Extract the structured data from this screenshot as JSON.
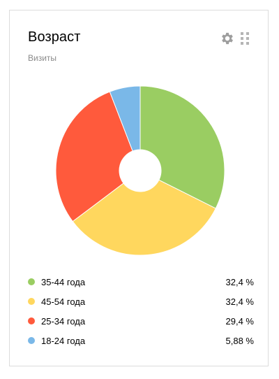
{
  "widget": {
    "title": "Возраст",
    "subtitle": "Визиты",
    "icons": [
      "gear-icon",
      "drag-handle-icon"
    ]
  },
  "chart_data": {
    "type": "pie",
    "donut": true,
    "categories": [
      "35-44 года",
      "45-54 года",
      "25-34 года",
      "18-24 года"
    ],
    "values": [
      32.4,
      32.4,
      29.4,
      5.88
    ],
    "value_labels": [
      "32,4 %",
      "32,4 %",
      "29,4 %",
      "5,88 %"
    ],
    "colors": [
      "#9acd62",
      "#ffd75e",
      "#ff5a3c",
      "#7ab8e8"
    ],
    "legend_position": "bottom"
  }
}
